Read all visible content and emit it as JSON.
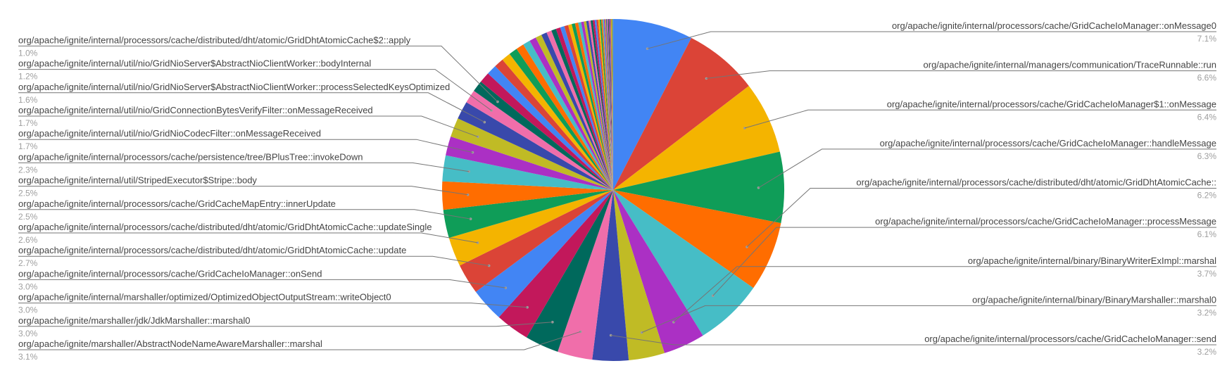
{
  "chart_data": {
    "type": "pie",
    "title": "",
    "legend": "none",
    "start_angle_deg": 0,
    "direction": "clockwise",
    "labeled_slices": [
      {
        "name": "org/apache/ignite/internal/processors/cache/GridCacheIoManager::onMessage0",
        "value": 7.1,
        "label": "7.1%",
        "color": "#4285F4"
      },
      {
        "name": "org/apache/ignite/internal/managers/communication/TraceRunnable::run",
        "value": 6.6,
        "label": "6.6%",
        "color": "#DB4437"
      },
      {
        "name": "org/apache/ignite/internal/processors/cache/GridCacheIoManager$1::onMessage",
        "value": 6.4,
        "label": "6.4%",
        "color": "#F4B400"
      },
      {
        "name": "org/apache/ignite/internal/processors/cache/GridCacheIoManager::handleMessage",
        "value": 6.3,
        "label": "6.3%",
        "color": "#0F9D58"
      },
      {
        "name": "org/apache/ignite/internal/processors/cache/distributed/dht/atomic/GridDhtAtomicCache::",
        "value": 6.2,
        "label": "6.2%",
        "color": "#FF6D00"
      },
      {
        "name": "org/apache/ignite/internal/processors/cache/GridCacheIoManager::processMessage",
        "value": 6.1,
        "label": "6.1%",
        "color": "#46BDC6"
      },
      {
        "name": "org/apache/ignite/internal/binary/BinaryWriterExImpl::marshal",
        "value": 3.7,
        "label": "3.7%",
        "color": "#AB30C4"
      },
      {
        "name": "org/apache/ignite/internal/binary/BinaryMarshaller::marshal0",
        "value": 3.2,
        "label": "3.2%",
        "color": "#C0BB25"
      },
      {
        "name": "org/apache/ignite/internal/processors/cache/GridCacheIoManager::send",
        "value": 3.2,
        "label": "3.2%",
        "color": "#3949AB"
      },
      {
        "name": "org/apache/ignite/marshaller/AbstractNodeNameAwareMarshaller::marshal",
        "value": 3.1,
        "label": "3.1%",
        "color": "#F06EAA"
      },
      {
        "name": "org/apache/ignite/marshaller/jdk/JdkMarshaller::marshal0",
        "value": 3.0,
        "label": "3.0%",
        "color": "#00695C"
      },
      {
        "name": "org/apache/ignite/internal/marshaller/optimized/OptimizedObjectOutputStream::writeObject0",
        "value": 3.0,
        "label": "3.0%",
        "color": "#C2185B"
      },
      {
        "name": "org/apache/ignite/internal/processors/cache/GridCacheIoManager::onSend",
        "value": 3.0,
        "label": "3.0%",
        "color": "#4285F4"
      },
      {
        "name": "org/apache/ignite/internal/processors/cache/distributed/dht/atomic/GridDhtAtomicCache::update",
        "value": 2.7,
        "label": "2.7%",
        "color": "#DB4437"
      },
      {
        "name": "org/apache/ignite/internal/processors/cache/distributed/dht/atomic/GridDhtAtomicCache::updateSingle",
        "value": 2.6,
        "label": "2.6%",
        "color": "#F4B400"
      },
      {
        "name": "org/apache/ignite/internal/processors/cache/GridCacheMapEntry::innerUpdate",
        "value": 2.5,
        "label": "2.5%",
        "color": "#0F9D58"
      },
      {
        "name": "org/apache/ignite/internal/util/StripedExecutor$Stripe::body",
        "value": 2.5,
        "label": "2.5%",
        "color": "#FF6D00"
      },
      {
        "name": "org/apache/ignite/internal/processors/cache/persistence/tree/BPlusTree::invokeDown",
        "value": 2.3,
        "label": "2.3%",
        "color": "#46BDC6"
      },
      {
        "name": "org/apache/ignite/internal/util/nio/GridNioCodecFilter::onMessageReceived",
        "value": 1.7,
        "label": "1.7%",
        "color": "#AB30C4"
      },
      {
        "name": "org/apache/ignite/internal/util/nio/GridConnectionBytesVerifyFilter::onMessageReceived",
        "value": 1.7,
        "label": "1.7%",
        "color": "#C0BB25"
      },
      {
        "name": "org/apache/ignite/internal/util/nio/GridNioServer$AbstractNioClientWorker::processSelectedKeysOptimized",
        "value": 1.6,
        "label": "1.6%",
        "color": "#3949AB"
      },
      {
        "name": "org/apache/ignite/internal/util/nio/GridNioServer$AbstractNioClientWorker::bodyInternal",
        "value": 1.2,
        "label": "1.2%",
        "color": "#F06EAA"
      },
      {
        "name": "org/apache/ignite/internal/processors/cache/distributed/dht/atomic/GridDhtAtomicCache$2::apply",
        "value": 1.0,
        "label": "1.0%",
        "color": "#00695C"
      }
    ],
    "other_slices": {
      "unlabeled": true,
      "values": [
        0.95,
        0.9,
        0.85,
        0.8,
        0.75,
        0.7,
        0.65,
        0.6,
        0.55,
        0.5,
        0.45,
        0.42,
        0.4,
        0.37,
        0.35,
        0.32,
        0.3,
        0.28,
        0.26,
        0.24,
        0.22,
        0.2,
        0.19,
        0.18,
        0.17,
        0.16,
        0.15,
        0.14,
        0.13,
        0.12,
        0.11,
        0.1,
        0.09,
        0.085,
        0.08,
        0.075,
        0.07,
        0.065,
        0.06,
        0.055,
        0.05,
        0.045,
        0.04
      ],
      "colors": [
        "#C2185B",
        "#4285F4",
        "#DB4437",
        "#F4B400",
        "#0F9D58",
        "#FF6D00",
        "#46BDC6",
        "#AB30C4",
        "#C0BB25",
        "#3949AB",
        "#F06EAA",
        "#00695C"
      ]
    },
    "label_colors": {
      "name": "#444444",
      "percent": "#9e9e9e",
      "leader": "#757575"
    }
  }
}
